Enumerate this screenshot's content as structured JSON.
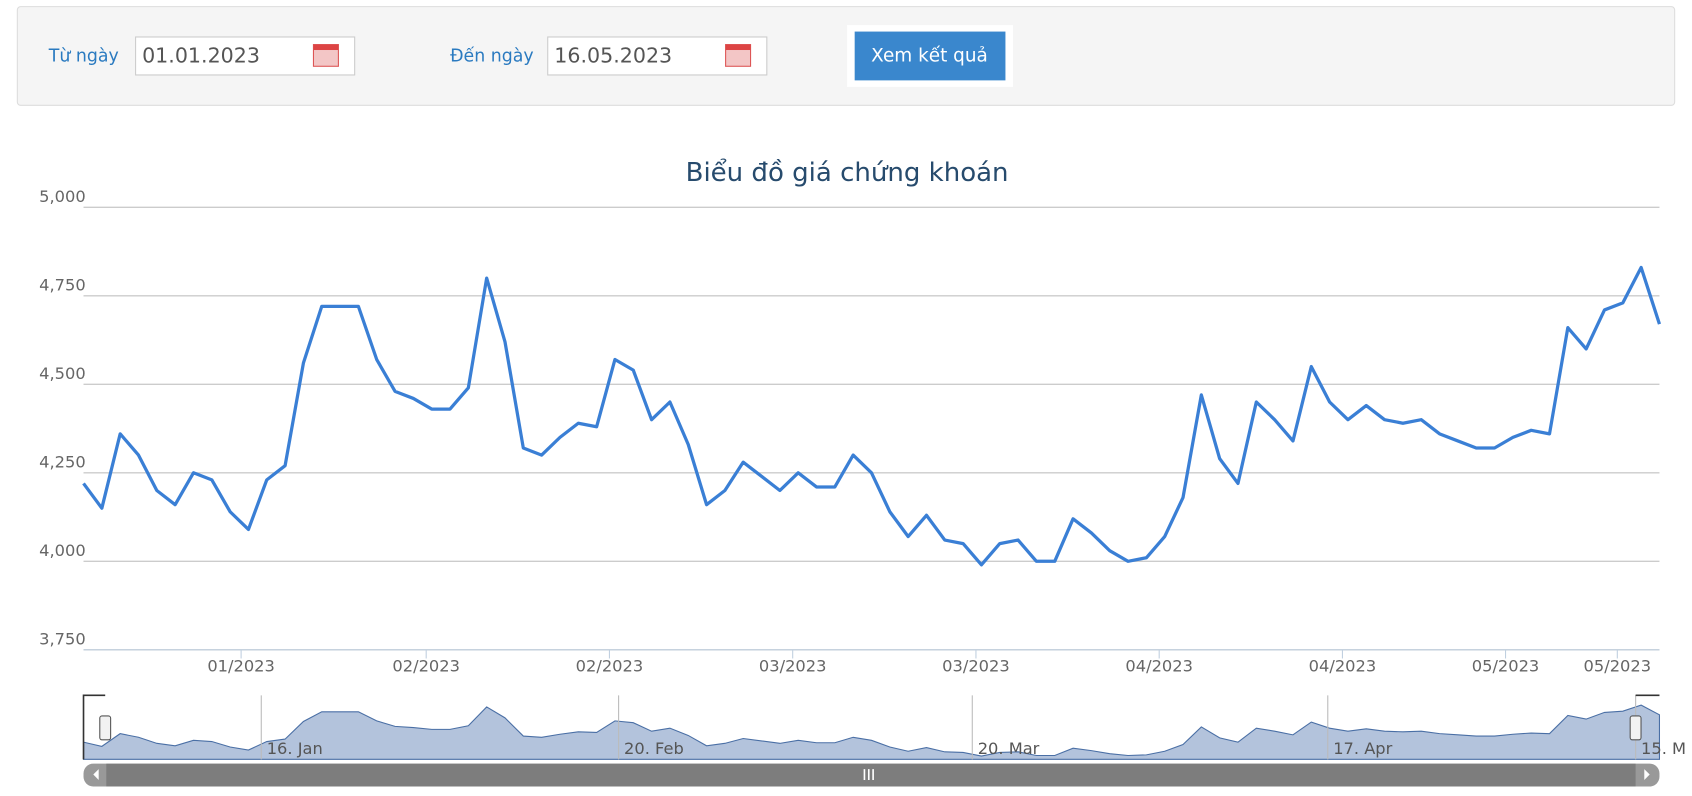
{
  "form": {
    "from_label": "Từ ngày",
    "from_value": "01.01.2023",
    "to_label": "Đến ngày",
    "to_value": "16.05.2023",
    "button": "Xem kết quả"
  },
  "chart_data": {
    "type": "line",
    "title": "Biểu đồ giá chứng khoán",
    "series": [
      {
        "color": "#3a7fd5",
        "values": [
          4220,
          4150,
          4360,
          4300,
          4200,
          4160,
          4250,
          4230,
          4140,
          4090,
          4230,
          4270,
          4560,
          4720,
          4720,
          4720,
          4570,
          4480,
          4460,
          4430,
          4430,
          4490,
          4800,
          4620,
          4320,
          4300,
          4350,
          4390,
          4380,
          4570,
          4540,
          4400,
          4450,
          4330,
          4160,
          4200,
          4280,
          4240,
          4200,
          4250,
          4210,
          4210,
          4300,
          4250,
          4140,
          4070,
          4130,
          4060,
          4050,
          3990,
          4050,
          4060,
          4000,
          4000,
          4120,
          4080,
          4030,
          4000,
          4010,
          4070,
          4180,
          4470,
          4290,
          4220,
          4450,
          4400,
          4340,
          4550,
          4450,
          4400,
          4440,
          4400,
          4390,
          4400,
          4360,
          4340,
          4320,
          4320,
          4350,
          4370,
          4360,
          4660,
          4600,
          4710,
          4730,
          4830,
          4670
        ]
      }
    ],
    "xlim": [
      0,
      86
    ],
    "xticks": [
      {
        "value": 8.6,
        "label": "01/2023"
      },
      {
        "value": 18.7,
        "label": "02/2023"
      },
      {
        "value": 28.7,
        "label": "02/2023"
      },
      {
        "value": 38.7,
        "label": "03/2023"
      },
      {
        "value": 48.7,
        "label": "03/2023"
      },
      {
        "value": 58.7,
        "label": "04/2023"
      },
      {
        "value": 68.7,
        "label": "04/2023"
      },
      {
        "value": 77.6,
        "label": "05/2023"
      },
      {
        "value": 83.7,
        "label": "05/2023"
      }
    ],
    "ylim": [
      3750,
      5000
    ],
    "yticks": [
      {
        "value": 3750,
        "label": "3,750"
      },
      {
        "value": 4000,
        "label": "4,000"
      },
      {
        "value": 4250,
        "label": "4,250"
      },
      {
        "value": 4500,
        "label": "4,500"
      },
      {
        "value": 4750,
        "label": "4,750"
      },
      {
        "value": 5000,
        "label": "5,000"
      }
    ],
    "grid": true,
    "navigator": {
      "color": "#b3c3dc",
      "ticks": [
        {
          "value": 9.7,
          "label": "16. Jan"
        },
        {
          "value": 29.2,
          "label": "20. Feb"
        },
        {
          "value": 48.5,
          "label": "20. Mar"
        },
        {
          "value": 67.9,
          "label": "17. Apr"
        },
        {
          "value": 84.7,
          "label": "15. M"
        }
      ]
    }
  }
}
